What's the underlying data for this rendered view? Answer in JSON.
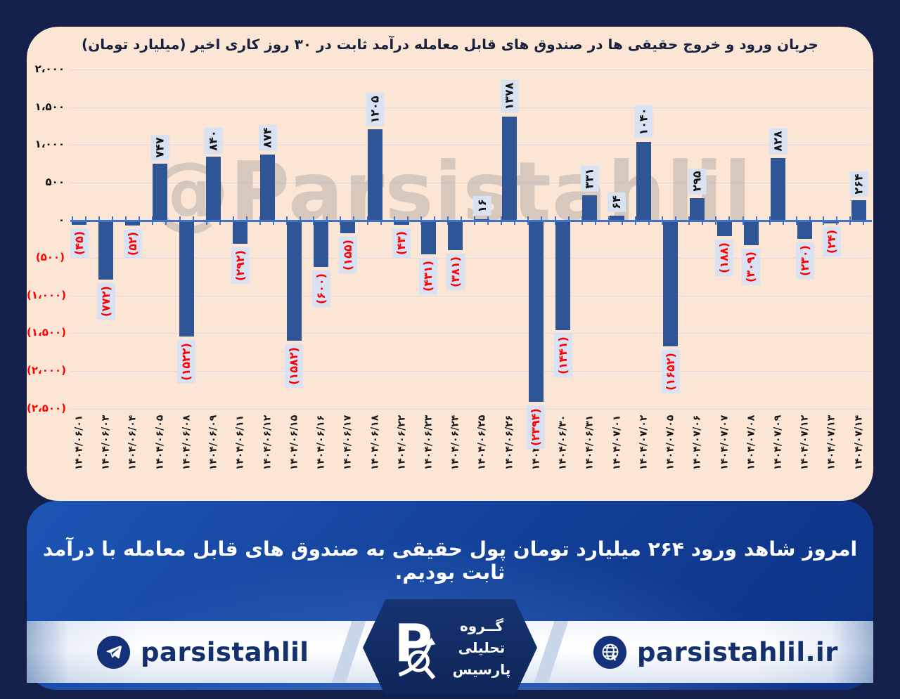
{
  "page": {
    "watermark": "@Parsistahlil",
    "summary_fa": "امروز شاهد ورود ۲۶۴ میلیارد تومان پول حقیقی به صندوق های قابل معامله با درآمد ثابت بودیم.",
    "footer": {
      "telegram_handle": "parsistahlil",
      "website": "parsistahlil.ir",
      "brand_lines_fa": [
        "گــروه",
        "تحلیلی",
        "پارسیس"
      ],
      "logo_letter": "P"
    },
    "colors": {
      "frame_navy": "#14204a",
      "card_bg": "#fbe5d4",
      "panel_blue": "#123f97",
      "accent_axis_blue": "#4472c4",
      "negative_red": "#ff0000",
      "footer_navy": "#14306e"
    }
  },
  "chart_data": {
    "type": "bar",
    "title": "جریان ورود و خروج حقیقی ها در صندوق های قابل معامله درآمد ثابت در ۳۰ روز کاری اخیر (میلیارد تومان)",
    "unit": "میلیارد تومان",
    "x": [
      "۱۴۰۴/۰۶/۰۱",
      "۱۴۰۴/۰۶/۰۳",
      "۱۴۰۴/۰۶/۰۴",
      "۱۴۰۴/۰۶/۰۵",
      "۱۴۰۴/۰۶/۰۸",
      "۱۴۰۴/۰۶/۰۹",
      "۱۴۰۴/۰۶/۱۱",
      "۱۴۰۴/۰۶/۱۲",
      "۱۴۰۴/۰۶/۱۵",
      "۱۴۰۴/۰۶/۱۶",
      "۱۴۰۴/۰۶/۱۷",
      "۱۴۰۴/۰۶/۱۸",
      "۱۴۰۴/۰۶/۲۲",
      "۱۴۰۴/۰۶/۲۳",
      "۱۴۰۴/۰۶/۲۴",
      "۱۴۰۴/۰۶/۲۵",
      "۱۴۰۴/۰۶/۲۶",
      "۱۴۰۴/۰۶/۲۹",
      "۱۴۰۴/۰۶/۳۰",
      "۱۴۰۴/۰۶/۳۱",
      "۱۴۰۴/۰۷/۰۱",
      "۱۴۰۴/۰۷/۰۲",
      "۱۴۰۴/۰۷/۰۵",
      "۱۴۰۴/۰۷/۰۶",
      "۱۴۰۴/۰۷/۰۷",
      "۱۴۰۴/۰۷/۰۸",
      "۱۴۰۴/۰۷/۰۹",
      "۱۴۰۴/۰۷/۱۲",
      "۱۴۰۴/۰۷/۱۳",
      "۱۴۰۴/۰۷/۱۴"
    ],
    "values": [
      -45,
      -772,
      -52,
      747,
      -1522,
      840,
      -292,
      874,
      -1582,
      -600,
      -155,
      1205,
      -43,
      -431,
      -381,
      16,
      1378,
      -2394,
      -1441,
      331,
      64,
      1040,
      -1652,
      295,
      -188,
      -309,
      828,
      -230,
      -24,
      264
    ],
    "value_labels_fa": [
      "(۴۵)",
      "(۷۷۲)",
      "(۵۲)",
      "۷۴۷",
      "(۱۵۲۲)",
      "۸۴۰",
      "(۲۹۲)",
      "۸۷۴",
      "(۱۵۸۲)",
      "(۶۰۰)",
      "(۱۵۵)",
      "۱۲۰۵",
      "(۴۳)",
      "(۴۳۱)",
      "(۳۸۱)",
      "۱۶",
      "۱۳۷۸",
      "(۲۳۹۴)",
      "(۱۴۴۱)",
      "۳۳۱",
      "۶۴",
      "۱۰۴۰",
      "(۱۶۵۲)",
      "۲۹۵",
      "(۱۸۸)",
      "(۳۰۹)",
      "۸۲۸",
      "(۲۳۰)",
      "(۲۴)",
      "۲۶۴"
    ],
    "ylim": [
      -2500,
      2000
    ],
    "yticks": [
      2000,
      1500,
      1000,
      500,
      0,
      -500,
      -1000,
      -1500,
      -2000,
      -2500
    ],
    "ytick_labels_fa": [
      "۲،۰۰۰",
      "۱،۵۰۰",
      "۱،۰۰۰",
      "۵۰۰",
      "۰",
      "(۵۰۰)",
      "(۱،۰۰۰)",
      "(۱،۵۰۰)",
      "(۲،۰۰۰)",
      "(۲،۵۰۰)"
    ],
    "grid": true,
    "legend": false,
    "bar_color": "#2e5697",
    "positive_label_color": "#111111",
    "negative_label_color": "#ff0000",
    "label_bg": "#d9e2f3",
    "axis_color": "#4472c4",
    "gridline_color": "#d9dde6"
  }
}
